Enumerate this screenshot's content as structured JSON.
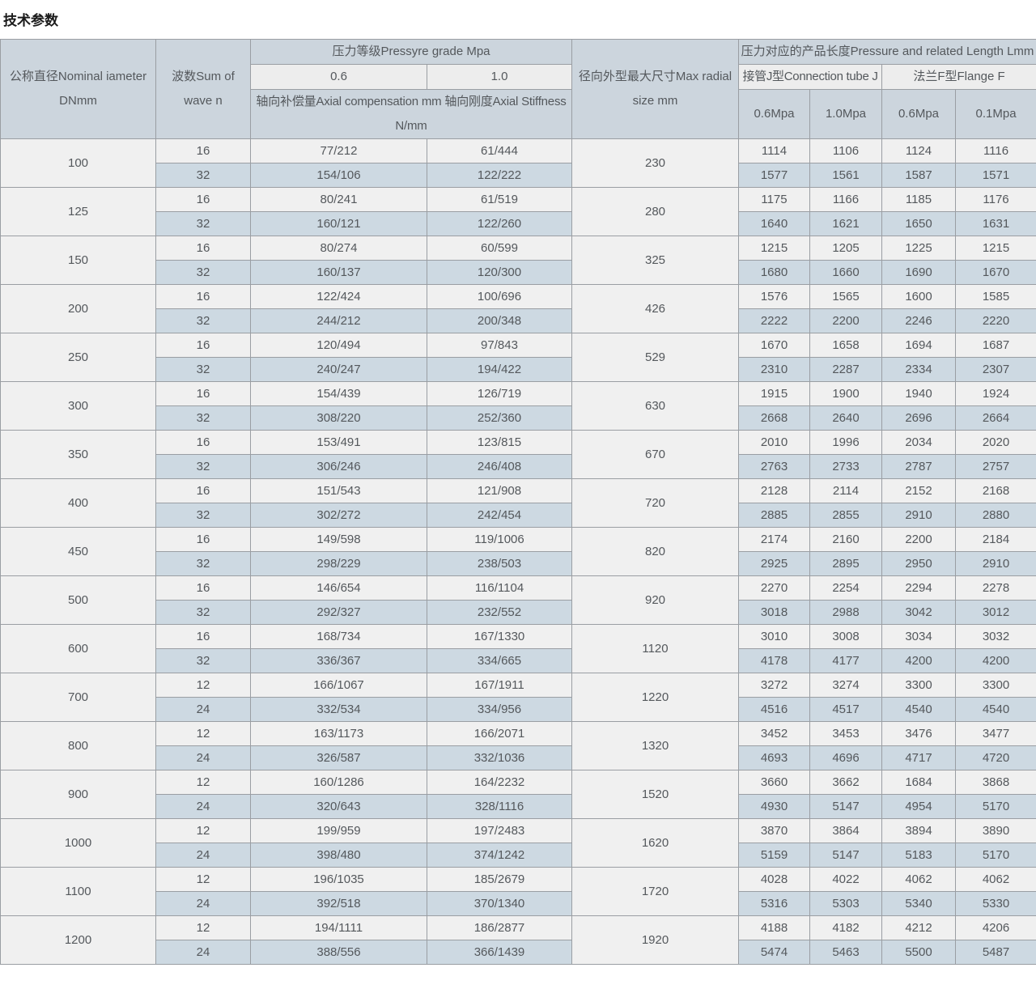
{
  "title": "技术参数",
  "colors": {
    "header_blue_gray": "#ccd5dd",
    "header_light_gray": "#ededed",
    "row_light": "#f0f0f0",
    "row_blue": "#cdd9e2",
    "border": "#9a9ea3"
  },
  "table": {
    "headers": {
      "nominal_diameter": "公称直径Nominal iameter DNmm",
      "wave_count": "波数Sum of wave n",
      "pressure_grade": "压力等级Pressyre grade Mpa",
      "grade_06": "0.6",
      "grade_10": "1.0",
      "axial": "轴向补偿量Axial compensation mm 轴向刚度Axial Stiffness N/mm",
      "max_radial": "径向外型最大尺寸Max radial size mm",
      "pressure_length": "压力对应的产品长度Pressure and related Length Lmm",
      "connection_tube": "接管J型Connection tube J",
      "flange": "法兰F型Flange F",
      "j_06": "0.6Mpa",
      "j_10": "1.0Mpa",
      "f_06": "0.6Mpa",
      "f_01": "0.1Mpa"
    },
    "groups": [
      {
        "dn": "100",
        "radial": "230",
        "rows": [
          {
            "n": "16",
            "axial_06": "77/212",
            "axial_10": "61/444",
            "j_06": "1114",
            "j_10": "1106",
            "f_06": "1124",
            "f_01": "1116"
          },
          {
            "n": "32",
            "axial_06": "154/106",
            "axial_10": "122/222",
            "j_06": "1577",
            "j_10": "1561",
            "f_06": "1587",
            "f_01": "1571"
          }
        ]
      },
      {
        "dn": "125",
        "radial": "280",
        "rows": [
          {
            "n": "16",
            "axial_06": "80/241",
            "axial_10": "61/519",
            "j_06": "1175",
            "j_10": "1166",
            "f_06": "1185",
            "f_01": "1176"
          },
          {
            "n": "32",
            "axial_06": "160/121",
            "axial_10": "122/260",
            "j_06": "1640",
            "j_10": "1621",
            "f_06": "1650",
            "f_01": "1631"
          }
        ]
      },
      {
        "dn": "150",
        "radial": "325",
        "rows": [
          {
            "n": "16",
            "axial_06": "80/274",
            "axial_10": "60/599",
            "j_06": "1215",
            "j_10": "1205",
            "f_06": "1225",
            "f_01": "1215"
          },
          {
            "n": "32",
            "axial_06": "160/137",
            "axial_10": "120/300",
            "j_06": "1680",
            "j_10": "1660",
            "f_06": "1690",
            "f_01": "1670"
          }
        ]
      },
      {
        "dn": "200",
        "radial": "426",
        "rows": [
          {
            "n": "16",
            "axial_06": "122/424",
            "axial_10": "100/696",
            "j_06": "1576",
            "j_10": "1565",
            "f_06": "1600",
            "f_01": "1585"
          },
          {
            "n": "32",
            "axial_06": "244/212",
            "axial_10": "200/348",
            "j_06": "2222",
            "j_10": "2200",
            "f_06": "2246",
            "f_01": "2220"
          }
        ]
      },
      {
        "dn": "250",
        "radial": "529",
        "rows": [
          {
            "n": "16",
            "axial_06": "120/494",
            "axial_10": "97/843",
            "j_06": "1670",
            "j_10": "1658",
            "f_06": "1694",
            "f_01": "1687"
          },
          {
            "n": "32",
            "axial_06": "240/247",
            "axial_10": "194/422",
            "j_06": "2310",
            "j_10": "2287",
            "f_06": "2334",
            "f_01": "2307"
          }
        ]
      },
      {
        "dn": "300",
        "radial": "630",
        "rows": [
          {
            "n": "16",
            "axial_06": "154/439",
            "axial_10": "126/719",
            "j_06": "1915",
            "j_10": "1900",
            "f_06": "1940",
            "f_01": "1924"
          },
          {
            "n": "32",
            "axial_06": "308/220",
            "axial_10": "252/360",
            "j_06": "2668",
            "j_10": "2640",
            "f_06": "2696",
            "f_01": "2664"
          }
        ]
      },
      {
        "dn": "350",
        "radial": "670",
        "rows": [
          {
            "n": "16",
            "axial_06": "153/491",
            "axial_10": "123/815",
            "j_06": "2010",
            "j_10": "1996",
            "f_06": "2034",
            "f_01": "2020"
          },
          {
            "n": "32",
            "axial_06": "306/246",
            "axial_10": "246/408",
            "j_06": "2763",
            "j_10": "2733",
            "f_06": "2787",
            "f_01": "2757"
          }
        ]
      },
      {
        "dn": "400",
        "radial": "720",
        "rows": [
          {
            "n": "16",
            "axial_06": "151/543",
            "axial_10": "121/908",
            "j_06": "2128",
            "j_10": "2114",
            "f_06": "2152",
            "f_01": "2168"
          },
          {
            "n": "32",
            "axial_06": "302/272",
            "axial_10": "242/454",
            "j_06": "2885",
            "j_10": "2855",
            "f_06": "2910",
            "f_01": "2880"
          }
        ]
      },
      {
        "dn": "450",
        "radial": "820",
        "rows": [
          {
            "n": "16",
            "axial_06": "149/598",
            "axial_10": "119/1006",
            "j_06": "2174",
            "j_10": "2160",
            "f_06": "2200",
            "f_01": "2184"
          },
          {
            "n": "32",
            "axial_06": "298/229",
            "axial_10": "238/503",
            "j_06": "2925",
            "j_10": "2895",
            "f_06": "2950",
            "f_01": "2910"
          }
        ]
      },
      {
        "dn": "500",
        "radial": "920",
        "rows": [
          {
            "n": "16",
            "axial_06": "146/654",
            "axial_10": "116/1104",
            "j_06": "2270",
            "j_10": "2254",
            "f_06": "2294",
            "f_01": "2278"
          },
          {
            "n": "32",
            "axial_06": "292/327",
            "axial_10": "232/552",
            "j_06": "3018",
            "j_10": "2988",
            "f_06": "3042",
            "f_01": "3012"
          }
        ]
      },
      {
        "dn": "600",
        "radial": "1120",
        "rows": [
          {
            "n": "16",
            "axial_06": "168/734",
            "axial_10": "167/1330",
            "j_06": "3010",
            "j_10": "3008",
            "f_06": "3034",
            "f_01": "3032"
          },
          {
            "n": "32",
            "axial_06": "336/367",
            "axial_10": "334/665",
            "j_06": "4178",
            "j_10": "4177",
            "f_06": "4200",
            "f_01": "4200"
          }
        ]
      },
      {
        "dn": "700",
        "radial": "1220",
        "rows": [
          {
            "n": "12",
            "axial_06": "166/1067",
            "axial_10": "167/1911",
            "j_06": "3272",
            "j_10": "3274",
            "f_06": "3300",
            "f_01": "3300"
          },
          {
            "n": "24",
            "axial_06": "332/534",
            "axial_10": "334/956",
            "j_06": "4516",
            "j_10": "4517",
            "f_06": "4540",
            "f_01": "4540"
          }
        ]
      },
      {
        "dn": "800",
        "radial": "1320",
        "rows": [
          {
            "n": "12",
            "axial_06": "163/1173",
            "axial_10": "166/2071",
            "j_06": "3452",
            "j_10": "3453",
            "f_06": "3476",
            "f_01": "3477"
          },
          {
            "n": "24",
            "axial_06": "326/587",
            "axial_10": "332/1036",
            "j_06": "4693",
            "j_10": "4696",
            "f_06": "4717",
            "f_01": "4720"
          }
        ]
      },
      {
        "dn": "900",
        "radial": "1520",
        "rows": [
          {
            "n": "12",
            "axial_06": "160/1286",
            "axial_10": "164/2232",
            "j_06": "3660",
            "j_10": "3662",
            "f_06": "1684",
            "f_01": "3868"
          },
          {
            "n": "24",
            "axial_06": "320/643",
            "axial_10": "328/1116",
            "j_06": "4930",
            "j_10": "5147",
            "f_06": "4954",
            "f_01": "5170"
          }
        ]
      },
      {
        "dn": "1000",
        "radial": "1620",
        "rows": [
          {
            "n": "12",
            "axial_06": "199/959",
            "axial_10": "197/2483",
            "j_06": "3870",
            "j_10": "3864",
            "f_06": "3894",
            "f_01": "3890"
          },
          {
            "n": "24",
            "axial_06": "398/480",
            "axial_10": "374/1242",
            "j_06": "5159",
            "j_10": "5147",
            "f_06": "5183",
            "f_01": "5170"
          }
        ]
      },
      {
        "dn": "1100",
        "radial": "1720",
        "rows": [
          {
            "n": "12",
            "axial_06": "196/1035",
            "axial_10": "185/2679",
            "j_06": "4028",
            "j_10": "4022",
            "f_06": "4062",
            "f_01": "4062"
          },
          {
            "n": "24",
            "axial_06": "392/518",
            "axial_10": "370/1340",
            "j_06": "5316",
            "j_10": "5303",
            "f_06": "5340",
            "f_01": "5330"
          }
        ]
      },
      {
        "dn": "1200",
        "radial": "1920",
        "rows": [
          {
            "n": "12",
            "axial_06": "194/1111",
            "axial_10": "186/2877",
            "j_06": "4188",
            "j_10": "4182",
            "f_06": "4212",
            "f_01": "4206"
          },
          {
            "n": "24",
            "axial_06": "388/556",
            "axial_10": "366/1439",
            "j_06": "5474",
            "j_10": "5463",
            "f_06": "5500",
            "f_01": "5487"
          }
        ]
      }
    ]
  }
}
